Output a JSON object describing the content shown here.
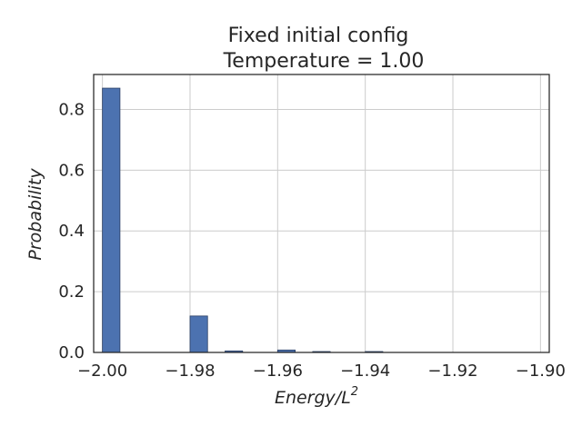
{
  "chart_data": {
    "type": "bar",
    "title": "Fixed initial config",
    "subtitle": "Temperature = 1.00",
    "xlabel_base": "Energy/L",
    "xlabel_sup": "2",
    "ylabel": "Probability",
    "xlim": [
      -2.002,
      -1.898
    ],
    "ylim": [
      0,
      0.915
    ],
    "xticks": [
      -2.0,
      -1.98,
      -1.96,
      -1.94,
      -1.92,
      -1.9
    ],
    "xtick_labels": [
      "−2.00",
      "−1.98",
      "−1.96",
      "−1.94",
      "−1.92",
      "−1.90"
    ],
    "yticks": [
      0.0,
      0.2,
      0.4,
      0.6,
      0.8
    ],
    "ytick_labels": [
      "0.0",
      "0.2",
      "0.4",
      "0.6",
      "0.8"
    ],
    "grid": true,
    "bins": [
      {
        "x0": -2.0,
        "x1": -1.996,
        "value": 0.87
      },
      {
        "x0": -1.98,
        "x1": -1.976,
        "value": 0.12
      },
      {
        "x0": -1.972,
        "x1": -1.968,
        "value": 0.005
      },
      {
        "x0": -1.96,
        "x1": -1.956,
        "value": 0.008
      },
      {
        "x0": -1.952,
        "x1": -1.948,
        "value": 0.002
      },
      {
        "x0": -1.94,
        "x1": -1.936,
        "value": 0.001
      }
    ]
  }
}
